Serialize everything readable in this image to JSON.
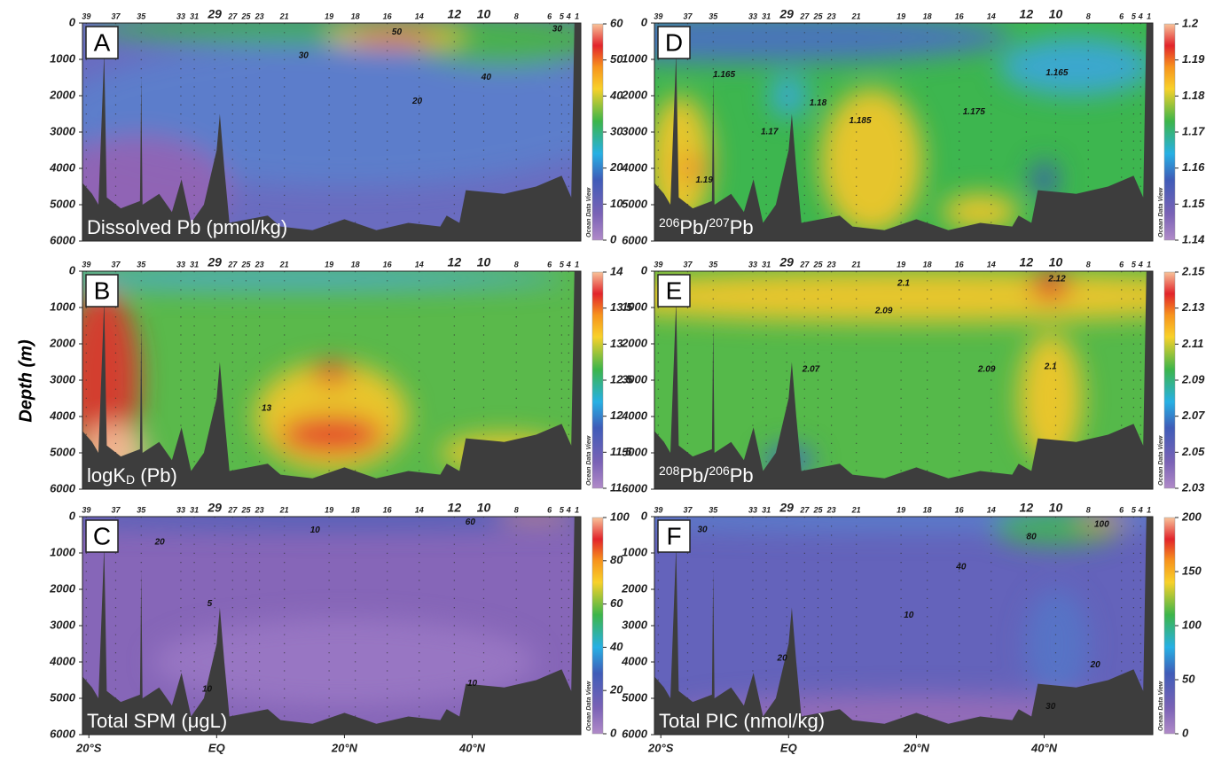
{
  "y_label": "Depth (m)",
  "watermark": "Ocean Data View",
  "highlight_color": "#e8262b",
  "stations": [
    {
      "label": 39,
      "lat": -20.4
    },
    {
      "label": 37,
      "lat": -15.8
    },
    {
      "label": 35,
      "lat": -11.8
    },
    {
      "label": 33,
      "lat": -5.6
    },
    {
      "label": 31,
      "lat": -3.5
    },
    {
      "label": 29,
      "lat": -0.3,
      "highlight": true
    },
    {
      "label": 27,
      "lat": 2.5
    },
    {
      "label": 25,
      "lat": 4.6
    },
    {
      "label": 23,
      "lat": 6.7
    },
    {
      "label": 21,
      "lat": 10.6
    },
    {
      "label": 19,
      "lat": 17.6
    },
    {
      "label": 18,
      "lat": 21.7
    },
    {
      "label": 16,
      "lat": 26.7
    },
    {
      "label": 14,
      "lat": 31.7
    },
    {
      "label": 12,
      "lat": 37.2,
      "highlight": true
    },
    {
      "label": 10,
      "lat": 41.8,
      "highlight": true
    },
    {
      "label": 8,
      "lat": 46.9
    },
    {
      "label": 6,
      "lat": 52.1
    },
    {
      "label": 5,
      "lat": 54.0
    },
    {
      "label": 4,
      "lat": 55.1
    },
    {
      "label": 1,
      "lat": 56.4
    }
  ],
  "chart_data": [
    {
      "type": "section",
      "panel": "A",
      "title": [
        {
          "text": "Dissolved Pb (pmol/kg)"
        }
      ],
      "xlim": [
        -21,
        57
      ],
      "xticks": [
        {
          "value": -20,
          "label": "20°S"
        },
        {
          "value": 0,
          "label": "EQ"
        },
        {
          "value": 20,
          "label": "20°N"
        },
        {
          "value": 40,
          "label": "40°N"
        }
      ],
      "ylim": [
        0,
        6000
      ],
      "y_inverted": true,
      "yticks": [
        0,
        1000,
        2000,
        3000,
        4000,
        5000,
        6000
      ],
      "clim": [
        0,
        60
      ],
      "cticks": [
        0,
        10,
        20,
        30,
        40,
        50,
        60
      ],
      "contours": [
        {
          "level": 50,
          "lat": 28.2,
          "depth": 250
        },
        {
          "level": 30,
          "lat": 13.6,
          "depth": 900
        },
        {
          "level": 40,
          "lat": 42.2,
          "depth": 1500
        },
        {
          "level": 20,
          "lat": 31.4,
          "depth": 2150
        },
        {
          "level": 30,
          "lat": 53.3,
          "depth": 170
        }
      ]
    },
    {
      "type": "section",
      "panel": "B",
      "title": [
        {
          "text": "logK"
        },
        {
          "text": "D",
          "style": "sub"
        },
        {
          "text": " (Pb)"
        }
      ],
      "xlim": [
        -21,
        57
      ],
      "xticks": [
        {
          "value": -20,
          "label": "20°S"
        },
        {
          "value": 0,
          "label": "EQ"
        },
        {
          "value": 20,
          "label": "20°N"
        },
        {
          "value": 40,
          "label": "40°N"
        }
      ],
      "ylim": [
        0,
        6000
      ],
      "y_inverted": true,
      "yticks": [
        0,
        1000,
        2000,
        3000,
        4000,
        5000,
        6000
      ],
      "clim": [
        11,
        14
      ],
      "cticks": [
        11,
        11.5,
        12,
        12.5,
        13,
        13.5,
        14
      ],
      "contours": [
        {
          "level": 13,
          "lat": 7.8,
          "depth": 3780
        }
      ]
    },
    {
      "type": "section",
      "panel": "C",
      "title": [
        {
          "text": "Total SPM (μgL)"
        }
      ],
      "xlim": [
        -21,
        57
      ],
      "xticks": [
        {
          "value": -20,
          "label": "20°S"
        },
        {
          "value": 0,
          "label": "EQ"
        },
        {
          "value": 20,
          "label": "20°N"
        },
        {
          "value": 40,
          "label": "40°N"
        }
      ],
      "ylim": [
        0,
        6000
      ],
      "y_inverted": true,
      "yticks": [
        0,
        1000,
        2000,
        3000,
        4000,
        5000,
        6000
      ],
      "clim": [
        0,
        100
      ],
      "cticks": [
        0,
        20,
        40,
        60,
        80,
        100
      ],
      "contours": [
        {
          "level": 20,
          "lat": -8.9,
          "depth": 700
        },
        {
          "level": 10,
          "lat": 15.4,
          "depth": 370
        },
        {
          "level": 5,
          "lat": -1.1,
          "depth": 2400
        },
        {
          "level": 10,
          "lat": -1.5,
          "depth": 4750
        },
        {
          "level": 60,
          "lat": 39.7,
          "depth": 150
        },
        {
          "level": 10,
          "lat": 40,
          "depth": 4600
        }
      ]
    },
    {
      "type": "section",
      "panel": "D",
      "title": [
        {
          "text": "206",
          "style": "sup"
        },
        {
          "text": "Pb/"
        },
        {
          "text": "207",
          "style": "sup"
        },
        {
          "text": "Pb"
        }
      ],
      "xlim": [
        -21,
        57
      ],
      "xticks": [
        {
          "value": -20,
          "label": "20°S"
        },
        {
          "value": 0,
          "label": "EQ"
        },
        {
          "value": 20,
          "label": "20°N"
        },
        {
          "value": 40,
          "label": "40°N"
        }
      ],
      "ylim": [
        0,
        6000
      ],
      "y_inverted": true,
      "yticks": [
        0,
        1000,
        2000,
        3000,
        4000,
        5000,
        6000
      ],
      "clim": [
        1.14,
        1.2
      ],
      "cticks": [
        1.14,
        1.15,
        1.16,
        1.17,
        1.18,
        1.19,
        1.2
      ],
      "contours": [
        {
          "level": 1.165,
          "lat": -10.1,
          "depth": 1420
        },
        {
          "level": 1.18,
          "lat": 4.6,
          "depth": 2200
        },
        {
          "level": 1.185,
          "lat": 11.2,
          "depth": 2690
        },
        {
          "level": 1.19,
          "lat": -13.2,
          "depth": 4330
        },
        {
          "level": 1.175,
          "lat": 29,
          "depth": 2450
        },
        {
          "level": 1.165,
          "lat": 42,
          "depth": 1370
        },
        {
          "level": 1.17,
          "lat": -3,
          "depth": 3000
        }
      ]
    },
    {
      "type": "section",
      "panel": "E",
      "title": [
        {
          "text": "208",
          "style": "sup"
        },
        {
          "text": "Pb/"
        },
        {
          "text": "206",
          "style": "sup"
        },
        {
          "text": "Pb"
        }
      ],
      "xlim": [
        -21,
        57
      ],
      "xticks": [
        {
          "value": -20,
          "label": "20°S"
        },
        {
          "value": 0,
          "label": "EQ"
        },
        {
          "value": 20,
          "label": "20°N"
        },
        {
          "value": 40,
          "label": "40°N"
        }
      ],
      "ylim": [
        0,
        6000
      ],
      "y_inverted": true,
      "yticks": [
        0,
        1000,
        2000,
        3000,
        4000,
        5000,
        6000
      ],
      "clim": [
        2.03,
        2.15
      ],
      "cticks": [
        2.03,
        2.05,
        2.07,
        2.09,
        2.11,
        2.13,
        2.15
      ],
      "contours": [
        {
          "level": 2.1,
          "lat": 18,
          "depth": 340
        },
        {
          "level": 2.09,
          "lat": 14.9,
          "depth": 1100
        },
        {
          "level": 2.07,
          "lat": 3.5,
          "depth": 2700
        },
        {
          "level": 2.12,
          "lat": 42,
          "depth": 220
        },
        {
          "level": 2.1,
          "lat": 41,
          "depth": 2630
        },
        {
          "level": 2.09,
          "lat": 31,
          "depth": 2700
        }
      ]
    },
    {
      "type": "section",
      "panel": "F",
      "title": [
        {
          "text": "Total PIC (nmol/kg)"
        }
      ],
      "xlim": [
        -21,
        57
      ],
      "xticks": [
        {
          "value": -20,
          "label": "20°S"
        },
        {
          "value": 0,
          "label": "EQ"
        },
        {
          "value": 20,
          "label": "20°N"
        },
        {
          "value": 40,
          "label": "40°N"
        }
      ],
      "ylim": [
        0,
        6000
      ],
      "y_inverted": true,
      "yticks": [
        0,
        1000,
        2000,
        3000,
        4000,
        5000,
        6000
      ],
      "clim": [
        0,
        200
      ],
      "cticks": [
        0,
        50,
        100,
        150,
        200
      ],
      "contours": [
        {
          "level": 30,
          "lat": -13.5,
          "depth": 360
        },
        {
          "level": 40,
          "lat": 27,
          "depth": 1390
        },
        {
          "level": 80,
          "lat": 38,
          "depth": 560
        },
        {
          "level": 100,
          "lat": 49,
          "depth": 220
        },
        {
          "level": 10,
          "lat": 18.8,
          "depth": 2710
        },
        {
          "level": 20,
          "lat": 48,
          "depth": 4080
        },
        {
          "level": 30,
          "lat": 41,
          "depth": 5230
        },
        {
          "level": 20,
          "lat": -1,
          "depth": 3900
        }
      ]
    }
  ]
}
